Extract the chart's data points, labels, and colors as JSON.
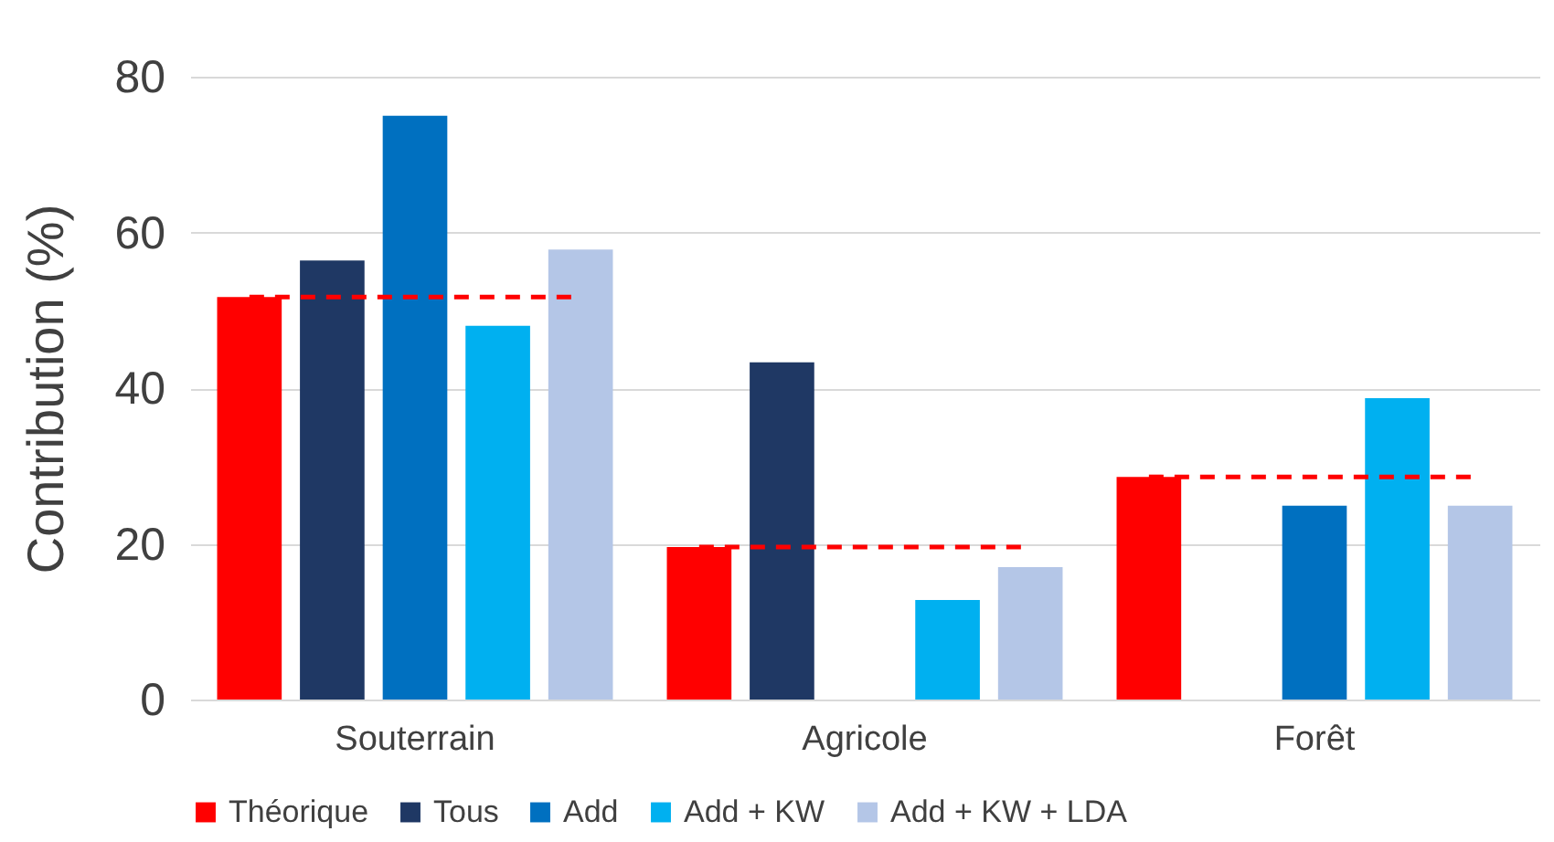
{
  "chart_data": {
    "type": "bar",
    "ylabel": "Contribution (%)",
    "categories": [
      "Souterrain",
      "Agricole",
      "Forêt"
    ],
    "series": [
      {
        "name": "Théorique",
        "color": "#ff0000",
        "values": [
          51.7,
          19.6,
          28.6
        ]
      },
      {
        "name": "Tous",
        "color": "#1f3864",
        "values": [
          56.4,
          43.3,
          null
        ]
      },
      {
        "name": "Add",
        "color": "#0070c0",
        "values": [
          75.0,
          null,
          24.9
        ]
      },
      {
        "name": "Add + KW",
        "color": "#00b0f0",
        "values": [
          48.0,
          12.8,
          38.7
        ]
      },
      {
        "name": "Add + KW + LDA",
        "color": "#b4c6e7",
        "values": [
          57.8,
          17.0,
          24.9
        ]
      }
    ],
    "ylim": [
      0,
      80
    ],
    "yticks": [
      0,
      20,
      40,
      60,
      80
    ],
    "grid": "y",
    "legend": "bottom",
    "ref_lines": [
      {
        "axis": "y",
        "value": 51.7,
        "color": "#ff0000",
        "line_style": "dashed"
      },
      {
        "axis": "y",
        "value": 19.6,
        "color": "#ff0000",
        "line_style": "dashed"
      },
      {
        "axis": "y",
        "value": 28.6,
        "color": "#ff0000",
        "line_style": "dashed"
      }
    ]
  }
}
